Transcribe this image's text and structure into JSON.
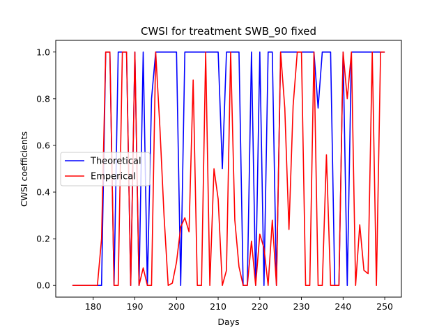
{
  "chart_data": {
    "type": "line",
    "title": "CWSI for treatment SWB_90 fixed",
    "xlabel": "Days",
    "ylabel": "CWSI coefficients",
    "xlim": [
      171,
      254
    ],
    "ylim": [
      -0.05,
      1.05
    ],
    "xticks": [
      180,
      190,
      200,
      210,
      220,
      230,
      240,
      250
    ],
    "yticks": [
      0.0,
      0.2,
      0.4,
      0.6,
      0.8,
      1.0
    ],
    "grid": false,
    "legend_position": "center-left",
    "series": [
      {
        "name": "Theoretical",
        "color": "#0000ff",
        "x": [
          175,
          176,
          177,
          178,
          179,
          180,
          181,
          182,
          183,
          184,
          185,
          186,
          187,
          188,
          189,
          190,
          191,
          192,
          193,
          194,
          195,
          196,
          197,
          198,
          199,
          200,
          201,
          202,
          203,
          204,
          205,
          206,
          207,
          208,
          209,
          210,
          211,
          212,
          213,
          214,
          215,
          216,
          217,
          218,
          219,
          220,
          221,
          222,
          223,
          224,
          225,
          226,
          227,
          228,
          229,
          230,
          231,
          232,
          233,
          234,
          235,
          236,
          237,
          238,
          239,
          240,
          241,
          242,
          243,
          244,
          245,
          246,
          247,
          248,
          249,
          250
        ],
        "y": [
          0,
          0,
          0,
          0,
          0,
          0,
          0,
          0,
          1,
          1,
          0,
          1,
          1,
          1,
          0,
          1,
          0,
          1,
          0,
          0.8,
          1,
          1,
          1,
          1,
          1,
          1,
          0,
          1,
          1,
          1,
          1,
          1,
          1,
          1,
          1,
          1,
          0.5,
          1,
          1,
          1,
          1,
          0,
          0,
          1,
          0,
          1,
          0,
          1,
          1,
          0,
          1,
          1,
          1,
          1,
          1,
          1,
          1,
          1,
          1,
          0.76,
          1,
          1,
          1,
          0,
          0,
          1,
          0,
          1,
          1,
          1,
          1,
          1,
          1,
          1,
          1,
          1
        ]
      },
      {
        "name": "Emperical",
        "color": "#ff0000",
        "x": [
          175,
          176,
          177,
          178,
          179,
          180,
          181,
          182,
          183,
          184,
          185,
          186,
          187,
          188,
          189,
          190,
          191,
          192,
          193,
          194,
          195,
          196,
          197,
          198,
          199,
          200,
          201,
          202,
          203,
          204,
          205,
          206,
          207,
          208,
          209,
          210,
          211,
          212,
          213,
          214,
          215,
          216,
          217,
          218,
          219,
          220,
          221,
          222,
          223,
          224,
          225,
          226,
          227,
          228,
          229,
          230,
          231,
          232,
          233,
          234,
          235,
          236,
          237,
          238,
          239,
          240,
          241,
          242,
          243,
          244,
          245,
          246,
          247,
          248,
          249,
          250
        ],
        "y": [
          0,
          0,
          0,
          0,
          0,
          0,
          0,
          0.2,
          1,
          1,
          0,
          0,
          1,
          1,
          0,
          1,
          0,
          0.075,
          0,
          0,
          1,
          0.68,
          0.3,
          0,
          0.01,
          0.1,
          0.25,
          0.29,
          0.23,
          0.88,
          0,
          0,
          1,
          0,
          0.5,
          0.37,
          0,
          0.065,
          1,
          0.28,
          0.08,
          0,
          0,
          0.19,
          0,
          0.22,
          0.16,
          0,
          0.28,
          0,
          1,
          0.76,
          0.24,
          0.77,
          1,
          1,
          0,
          0,
          1,
          0,
          0,
          0.56,
          0,
          0,
          0,
          1,
          0.8,
          1,
          0,
          0.26,
          0.065,
          0.05,
          1,
          0,
          1,
          1
        ]
      }
    ]
  }
}
